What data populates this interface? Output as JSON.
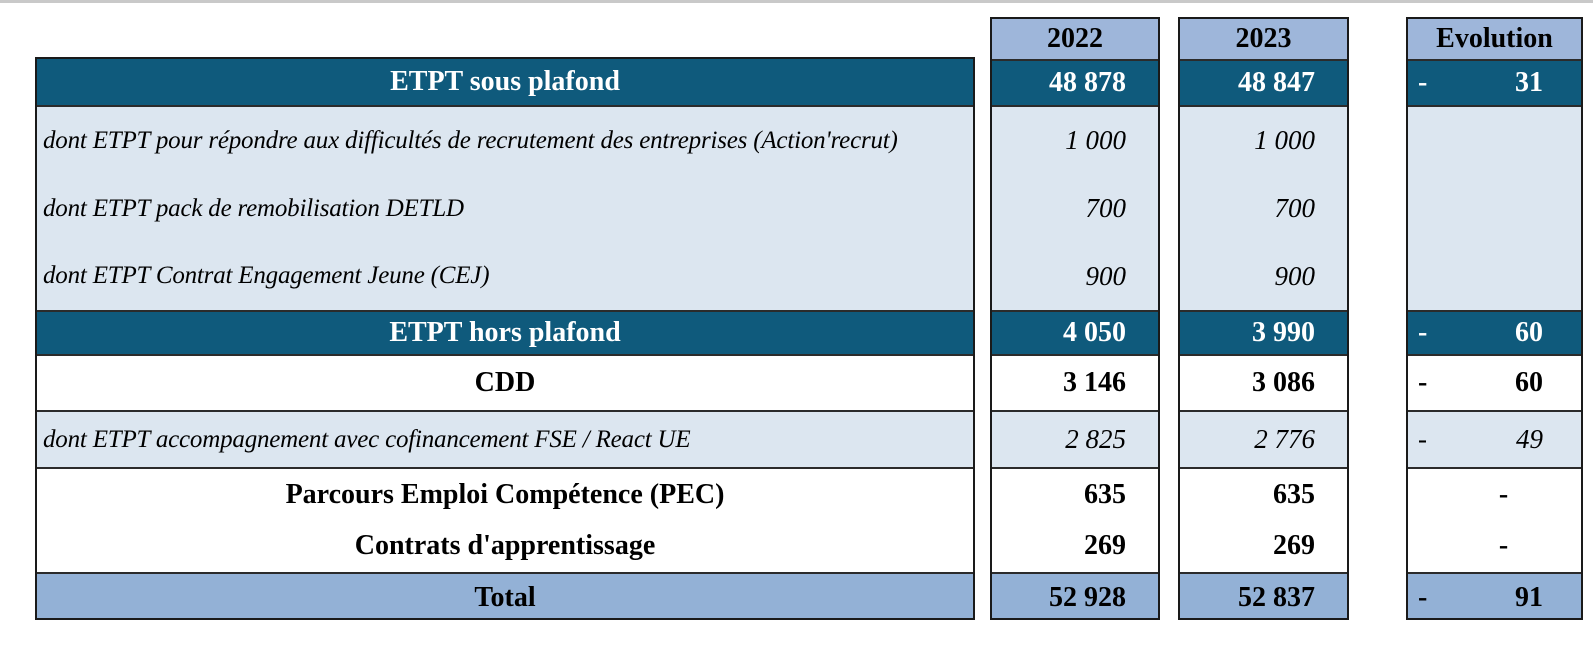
{
  "colors": {
    "teal": "#0f5a7c",
    "header_blue": "#9eb6da",
    "light_blue": "#dce6f0",
    "total_blue": "#93b1d6",
    "border": "#1a1a1a",
    "top_strip": "#c9c9c9"
  },
  "header": {
    "col_2022": "2022",
    "col_2023": "2023",
    "col_evolution": "Evolution"
  },
  "rows": {
    "sous_plafond": {
      "label": "ETPT sous plafond",
      "v2022": "48 878",
      "v2023": "48 847",
      "evo": {
        "sign": "-",
        "value": "31"
      }
    },
    "dont_action_recrut": {
      "label": "dont ETPT pour répondre aux difficultés de recrutement des entreprises (Action'recrut)",
      "v2022": "1 000",
      "v2023": "1 000",
      "evo": null
    },
    "dont_detld": {
      "label": "dont ETPT pack de remobilisation DETLD",
      "v2022": "700",
      "v2023": "700",
      "evo": null
    },
    "dont_cej": {
      "label": "dont ETPT Contrat Engagement Jeune (CEJ)",
      "v2022": "900",
      "v2023": "900",
      "evo": null
    },
    "hors_plafond": {
      "label": "ETPT hors plafond",
      "v2022": "4 050",
      "v2023": "3 990",
      "evo": {
        "sign": "-",
        "value": "60"
      }
    },
    "cdd": {
      "label": "CDD",
      "v2022": "3 146",
      "v2023": "3 086",
      "evo": {
        "sign": "-",
        "value": "60"
      }
    },
    "dont_fse": {
      "label": "dont ETPT accompagnement avec cofinancement FSE / React UE",
      "v2022": "2 825",
      "v2023": "2 776",
      "evo": {
        "sign": "-",
        "value": "49"
      }
    },
    "pec": {
      "label": "Parcours Emploi Compétence (PEC)",
      "v2022": "635",
      "v2023": "635",
      "evo": {
        "dash": "-"
      }
    },
    "apprentissage": {
      "label": "Contrats d'apprentissage",
      "v2022": "269",
      "v2023": "269",
      "evo": {
        "dash": "-"
      }
    },
    "total": {
      "label": "Total",
      "v2022": "52 928",
      "v2023": "52 837",
      "evo": {
        "sign": "-",
        "value": "91"
      }
    }
  }
}
